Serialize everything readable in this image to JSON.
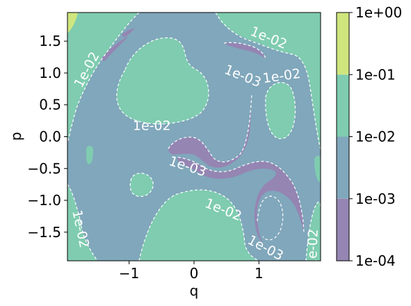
{
  "chart_data": {
    "type": "contour",
    "xlabel": "q",
    "ylabel": "p",
    "xlim": [
      -1.95,
      1.95
    ],
    "ylim": [
      -1.95,
      1.95
    ],
    "xticks": [
      {
        "value": -1,
        "label": "−1"
      },
      {
        "value": 0,
        "label": "0"
      },
      {
        "value": 1,
        "label": "1"
      }
    ],
    "yticks": [
      {
        "value": 1.5,
        "label": "1.5"
      },
      {
        "value": 1.0,
        "label": "1.0"
      },
      {
        "value": 0.5,
        "label": "0.5"
      },
      {
        "value": 0.0,
        "label": "0.0"
      },
      {
        "value": -0.5,
        "label": "−0.5"
      },
      {
        "value": -1.0,
        "label": "−1.0"
      },
      {
        "value": -1.5,
        "label": "−1.5"
      }
    ],
    "colorbar": {
      "scale": "log",
      "levels": [
        {
          "value": 0.0001,
          "label": "1e-04"
        },
        {
          "value": 0.001,
          "label": "1e-03"
        },
        {
          "value": 0.01,
          "label": "1e-02"
        },
        {
          "value": 0.1,
          "label": "1e-01"
        },
        {
          "value": 1,
          "label": "1e+00"
        }
      ],
      "band_colors": [
        "#9585b3",
        "#80a7bb",
        "#7fccb0",
        "#cfe67e"
      ]
    },
    "contour_labels": [
      {
        "text": "1e-02",
        "q": 1.15,
        "p": 1.55,
        "angle": 22
      },
      {
        "text": "1e-02",
        "q": -1.65,
        "p": 1.05,
        "angle": -62
      },
      {
        "text": "1e-03",
        "q": 0.75,
        "p": 0.95,
        "angle": 22
      },
      {
        "text": "1e-02",
        "q": 1.35,
        "p": 0.95,
        "angle": -8
      },
      {
        "text": "1e-02",
        "q": -0.65,
        "p": 0.17,
        "angle": 0
      },
      {
        "text": "1e-03",
        "q": -0.1,
        "p": -0.47,
        "angle": 18
      },
      {
        "text": "1e-02",
        "q": 0.45,
        "p": -1.15,
        "angle": 22
      },
      {
        "text": "1e-02",
        "q": -1.75,
        "p": -1.45,
        "angle": 78
      },
      {
        "text": "1e-03",
        "q": 1.1,
        "p": -1.75,
        "angle": 28
      },
      {
        "text": "1e-02",
        "q": 1.83,
        "p": -1.75,
        "angle": -88
      }
    ]
  }
}
